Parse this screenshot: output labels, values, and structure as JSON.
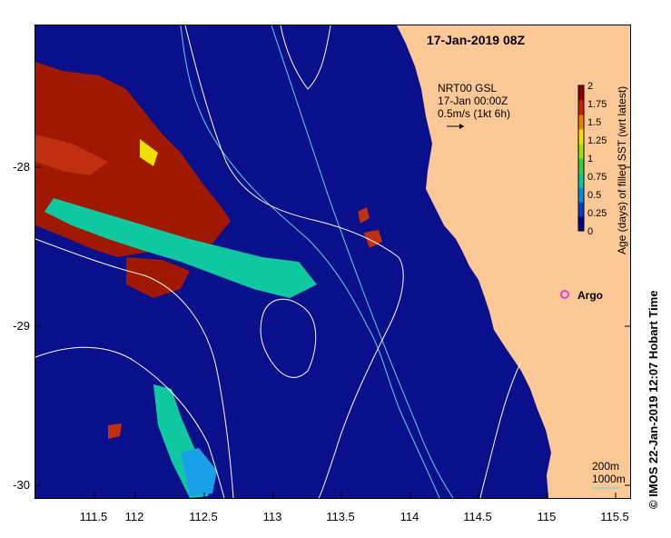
{
  "map": {
    "title": "17-Jan-2019 08Z",
    "current_label": {
      "line1": "NRT00 GSL",
      "line2": "17-Jan 00:00Z",
      "line3": "0.5m/s (1kt 6h)"
    },
    "argo_label": "Argo",
    "argo_color": "#e040e0",
    "land_color": "#fcc895",
    "ocean_color": "#0a0f8c",
    "bathymetry_labels": [
      "200m",
      "1000m"
    ],
    "contour_color": "#ffffff",
    "isobath_color": "#58d8e0",
    "x_ticks": [
      "111.5",
      "112",
      "112.5",
      "113",
      "113.5",
      "114",
      "114.5",
      "115",
      "115.5"
    ],
    "y_ticks": [
      "-28",
      "-29",
      "-30"
    ]
  },
  "colorbar": {
    "label": "Age (days) of filled SST (wrt latest)",
    "tick_labels": [
      "0",
      "0.25",
      "0.5",
      "0.75",
      "1",
      "1.25",
      "1.5",
      "1.75",
      "2"
    ],
    "colors": [
      "#00008c",
      "#0040d0",
      "#0090e0",
      "#10c8a0",
      "#30d040",
      "#a0e010",
      "#f0e000",
      "#f08000",
      "#d02000",
      "#900000"
    ]
  },
  "credit": "© IMOS 22-Jan-2019 12:07 Hobart Time"
}
